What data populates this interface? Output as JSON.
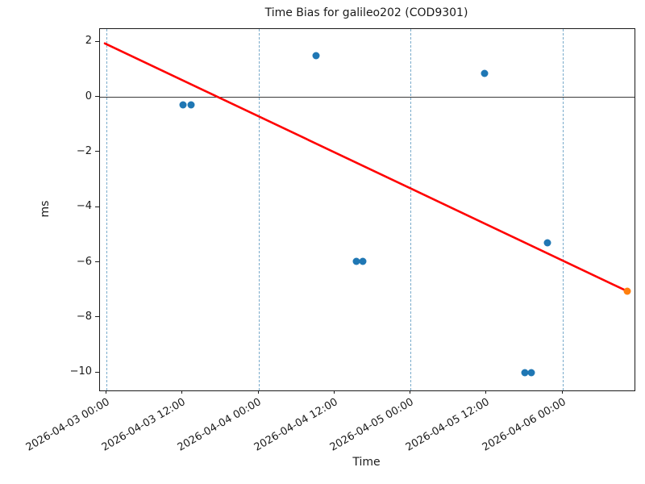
{
  "chart_data": {
    "type": "scatter",
    "title": "Time Bias for galileo202 (COD9301)",
    "xlabel": "Time",
    "ylabel": "ms",
    "legend": "none",
    "grid": "vertical-dashed-at-day-boundaries",
    "colors": {
      "points": "#1f77b4",
      "latest_point": "#ff7f0e",
      "trend": "#ff0000",
      "grid": "#79abcb"
    },
    "x_axis": {
      "range_days": [
        -0.042,
        3.473
      ],
      "epoch": "2026-04-03 00:00",
      "ticks": [
        {
          "label": "2026-04-03 00:00",
          "t": 0.0,
          "grid": true
        },
        {
          "label": "2026-04-03 12:00",
          "t": 0.5,
          "grid": false
        },
        {
          "label": "2026-04-04 00:00",
          "t": 1.0,
          "grid": true
        },
        {
          "label": "2026-04-04 12:00",
          "t": 1.5,
          "grid": false
        },
        {
          "label": "2026-04-05 00:00",
          "t": 2.0,
          "grid": true
        },
        {
          "label": "2026-04-05 12:00",
          "t": 2.5,
          "grid": false
        },
        {
          "label": "2026-04-06 00:00",
          "t": 3.0,
          "grid": true
        }
      ]
    },
    "y_axis": {
      "range": [
        -10.65,
        2.46
      ],
      "zero_line": true,
      "ticks": [
        {
          "label": "2",
          "v": 2
        },
        {
          "label": "0",
          "v": 0
        },
        {
          "label": "−2",
          "v": -2
        },
        {
          "label": "−4",
          "v": -4
        },
        {
          "label": "−6",
          "v": -6
        },
        {
          "label": "−8",
          "v": -8
        },
        {
          "label": "−10",
          "v": -10
        }
      ]
    },
    "series": [
      {
        "name": "bias-points",
        "color": "#1f77b4",
        "marker": "circle",
        "points": [
          {
            "time": "2026-04-03 12:06",
            "t": 0.504,
            "ms": -0.29
          },
          {
            "time": "2026-04-03 13:22",
            "t": 0.557,
            "ms": -0.29
          },
          {
            "time": "2026-04-04 09:06",
            "t": 1.379,
            "ms": 1.49
          },
          {
            "time": "2026-04-04 15:27",
            "t": 1.644,
            "ms": -5.97
          },
          {
            "time": "2026-04-04 16:28",
            "t": 1.686,
            "ms": -5.97
          },
          {
            "time": "2026-04-05 11:41",
            "t": 2.487,
            "ms": 0.85
          },
          {
            "time": "2026-04-05 18:03",
            "t": 2.752,
            "ms": -10.0
          },
          {
            "time": "2026-04-05 19:03",
            "t": 2.794,
            "ms": -10.0
          },
          {
            "time": "2026-04-05 21:36",
            "t": 2.9,
            "ms": -5.29
          }
        ]
      },
      {
        "name": "latest",
        "color": "#ff7f0e",
        "marker": "circle",
        "points": [
          {
            "time": "2026-04-06 10:12",
            "t": 3.425,
            "ms": -7.05
          }
        ]
      }
    ],
    "trend_line": {
      "color": "#ff0000",
      "width": 2.6,
      "from": {
        "t": -0.01,
        "ms": 1.94
      },
      "to": {
        "t": 3.425,
        "ms": -7.05
      }
    }
  }
}
